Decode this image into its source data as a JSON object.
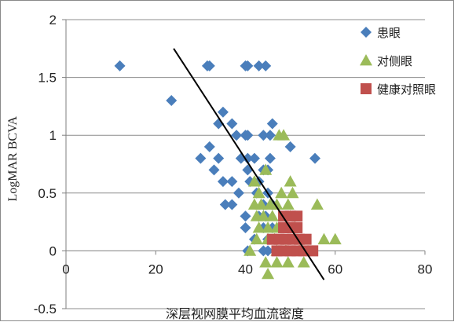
{
  "chart_data": {
    "type": "scatter",
    "xlabel": "深层视网膜平均血流密度",
    "ylabel": "LogMAR BCVA",
    "xlim": [
      0,
      80
    ],
    "ylim": [
      -0.5,
      2
    ],
    "x_ticks": [
      "0",
      "20",
      "40",
      "60",
      "80"
    ],
    "y_ticks": [
      "-0.5",
      "0",
      "0.5",
      "1",
      "1.5",
      "2"
    ],
    "x_tick_values": [
      0,
      20,
      40,
      60,
      80
    ],
    "y_tick_values": [
      -0.5,
      0,
      0.5,
      1,
      1.5,
      2
    ],
    "grid": "horizontal",
    "legend_position": "top-right",
    "series": [
      {
        "name": "患眼",
        "marker": "diamond",
        "color": "#4a7ebb",
        "points": [
          [
            12,
            1.6
          ],
          [
            31.5,
            1.6
          ],
          [
            32,
            1.6
          ],
          [
            40,
            1.6
          ],
          [
            40.5,
            1.6
          ],
          [
            43,
            1.6
          ],
          [
            44.5,
            1.6
          ],
          [
            23.5,
            1.3
          ],
          [
            35,
            1.2
          ],
          [
            34,
            1.1
          ],
          [
            37,
            1.1
          ],
          [
            46,
            1.1
          ],
          [
            38,
            1.0
          ],
          [
            40,
            1.0
          ],
          [
            40.5,
            1.0
          ],
          [
            44,
            1.0
          ],
          [
            45.5,
            1.0
          ],
          [
            32,
            0.9
          ],
          [
            50,
            0.9
          ],
          [
            30,
            0.8
          ],
          [
            34,
            0.8
          ],
          [
            39,
            0.8
          ],
          [
            40.5,
            0.8
          ],
          [
            42,
            0.8
          ],
          [
            45.5,
            0.8
          ],
          [
            55.5,
            0.8
          ],
          [
            33,
            0.7
          ],
          [
            40.5,
            0.7
          ],
          [
            44,
            0.7
          ],
          [
            45,
            0.7
          ],
          [
            35,
            0.6
          ],
          [
            37,
            0.6
          ],
          [
            41,
            0.6
          ],
          [
            43,
            0.6
          ],
          [
            38.5,
            0.5
          ],
          [
            42.5,
            0.5
          ],
          [
            45,
            0.5
          ],
          [
            35.5,
            0.4
          ],
          [
            37,
            0.4
          ],
          [
            44,
            0.4
          ],
          [
            46,
            0.4
          ],
          [
            40,
            0.3
          ],
          [
            43,
            0.3
          ],
          [
            44.5,
            0.3
          ],
          [
            40,
            0.2
          ],
          [
            44,
            0.2
          ],
          [
            46,
            0.2
          ],
          [
            42,
            0.1
          ],
          [
            45,
            0.1
          ],
          [
            40.5,
            0.0
          ],
          [
            44,
            0.0
          ],
          [
            45,
            0.0
          ]
        ]
      },
      {
        "name": "对侧眼",
        "marker": "triangle",
        "color": "#9bbb59",
        "points": [
          [
            47.5,
            1.0
          ],
          [
            48.5,
            1.0
          ],
          [
            44.5,
            0.7
          ],
          [
            42,
            0.6
          ],
          [
            50,
            0.6
          ],
          [
            43,
            0.5
          ],
          [
            48,
            0.5
          ],
          [
            50.5,
            0.5
          ],
          [
            42,
            0.4
          ],
          [
            43.5,
            0.4
          ],
          [
            45.5,
            0.4
          ],
          [
            47,
            0.4
          ],
          [
            49.5,
            0.4
          ],
          [
            56,
            0.4
          ],
          [
            42.5,
            0.3
          ],
          [
            44,
            0.3
          ],
          [
            46,
            0.3
          ],
          [
            50,
            0.3
          ],
          [
            43,
            0.2
          ],
          [
            45,
            0.2
          ],
          [
            47,
            0.2
          ],
          [
            49,
            0.2
          ],
          [
            51,
            0.2
          ],
          [
            42.5,
            0.1
          ],
          [
            45,
            0.1
          ],
          [
            46.5,
            0.1
          ],
          [
            51,
            0.1
          ],
          [
            57.5,
            0.1
          ],
          [
            60,
            0.1
          ],
          [
            41,
            0.0
          ],
          [
            47,
            0.0
          ],
          [
            49,
            0.0
          ],
          [
            52,
            0.0
          ],
          [
            44.5,
            -0.1
          ],
          [
            47,
            -0.1
          ],
          [
            49.5,
            -0.1
          ],
          [
            53,
            -0.1
          ],
          [
            45,
            -0.2
          ]
        ]
      },
      {
        "name": "健康对照眼",
        "marker": "square",
        "color": "#c0504d",
        "points": [
          [
            48.5,
            0.3
          ],
          [
            50,
            0.3
          ],
          [
            51.5,
            0.3
          ],
          [
            48.5,
            0.2
          ],
          [
            50,
            0.2
          ],
          [
            51.5,
            0.2
          ],
          [
            46,
            0.1
          ],
          [
            47.5,
            0.1
          ],
          [
            49,
            0.1
          ],
          [
            50.5,
            0.1
          ],
          [
            52,
            0.1
          ],
          [
            53.5,
            0.1
          ],
          [
            47,
            0.0
          ],
          [
            48.5,
            0.0
          ],
          [
            50,
            0.0
          ],
          [
            51.5,
            0.0
          ],
          [
            53,
            0.0
          ],
          [
            55,
            0.0
          ]
        ]
      }
    ],
    "trendline": {
      "x1": 24,
      "y1": 1.75,
      "x2": 57.5,
      "y2": -0.25,
      "color": "#000000"
    }
  }
}
